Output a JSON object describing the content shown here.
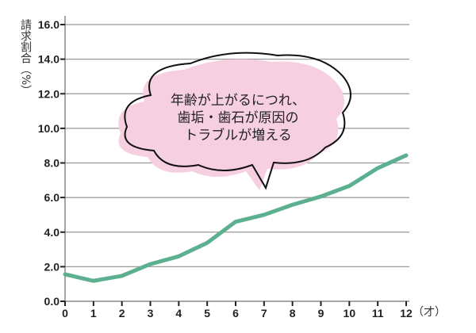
{
  "chart_data": {
    "type": "line",
    "title": "",
    "xlabel": "（才）",
    "ylabel": "請求割合（%）",
    "x": [
      0,
      1,
      2,
      3,
      4,
      5,
      6,
      7,
      8,
      9,
      10,
      11,
      12
    ],
    "x_tick_labels": [
      "0",
      "1",
      "2",
      "3",
      "4",
      "5",
      "6",
      "7",
      "8",
      "9",
      "10",
      "11",
      "12"
    ],
    "y_tick_labels": [
      "0.0",
      "2.0",
      "4.0",
      "6.0",
      "8.0",
      "10.0",
      "12.0",
      "14.0",
      "16.0"
    ],
    "series": [
      {
        "values": [
          1.56,
          1.18,
          1.47,
          2.15,
          2.6,
          3.38,
          4.6,
          5.0,
          5.58,
          6.06,
          6.67,
          7.7,
          8.44
        ]
      }
    ],
    "xlim": [
      0,
      12
    ],
    "ylim": [
      0,
      16
    ],
    "grid": "horizontal",
    "line_color": "#5db08f",
    "annotation": {
      "lines": [
        "年齢が上がるにつれ、",
        "歯垢・歯石が原因の",
        "トラブルが増える"
      ],
      "bubble_color": "#f6cfe0"
    }
  }
}
